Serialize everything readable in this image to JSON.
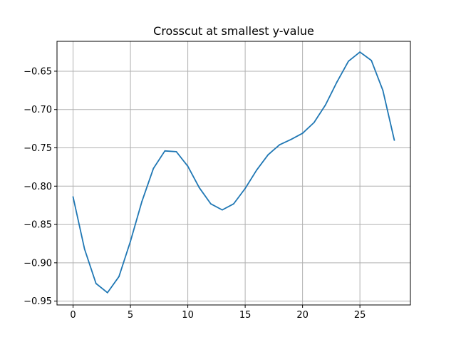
{
  "chart_data": {
    "type": "line",
    "title": "Crosscut at smallest y-value",
    "xlabel": "",
    "ylabel": "",
    "xlim": [
      -1.4,
      29.4
    ],
    "ylim": [
      -0.955,
      -0.611
    ],
    "xticks": [
      0,
      5,
      10,
      15,
      20,
      25
    ],
    "xtick_labels": [
      "0",
      "5",
      "10",
      "15",
      "20",
      "25"
    ],
    "yticks": [
      -0.95,
      -0.9,
      -0.85,
      -0.8,
      -0.75,
      -0.7,
      -0.65
    ],
    "ytick_labels": [
      "−0.95",
      "−0.90",
      "−0.85",
      "−0.80",
      "−0.75",
      "−0.70",
      "−0.65"
    ],
    "grid": true,
    "line_color": "#1f77b4",
    "series": [
      {
        "x": [
          0,
          1,
          2,
          3,
          4,
          5,
          6,
          7,
          8,
          9,
          10,
          11,
          12,
          13,
          14,
          15,
          16,
          17,
          18,
          19,
          20,
          21,
          22,
          23,
          24,
          25,
          26,
          27,
          28
        ],
        "values": [
          -0.814,
          -0.882,
          -0.927,
          -0.939,
          -0.918,
          -0.872,
          -0.82,
          -0.777,
          -0.754,
          -0.755,
          -0.774,
          -0.802,
          -0.823,
          -0.831,
          -0.823,
          -0.803,
          -0.779,
          -0.759,
          -0.746,
          -0.739,
          -0.731,
          -0.717,
          -0.694,
          -0.664,
          -0.637,
          -0.625,
          -0.636,
          -0.675,
          -0.74
        ]
      }
    ]
  }
}
